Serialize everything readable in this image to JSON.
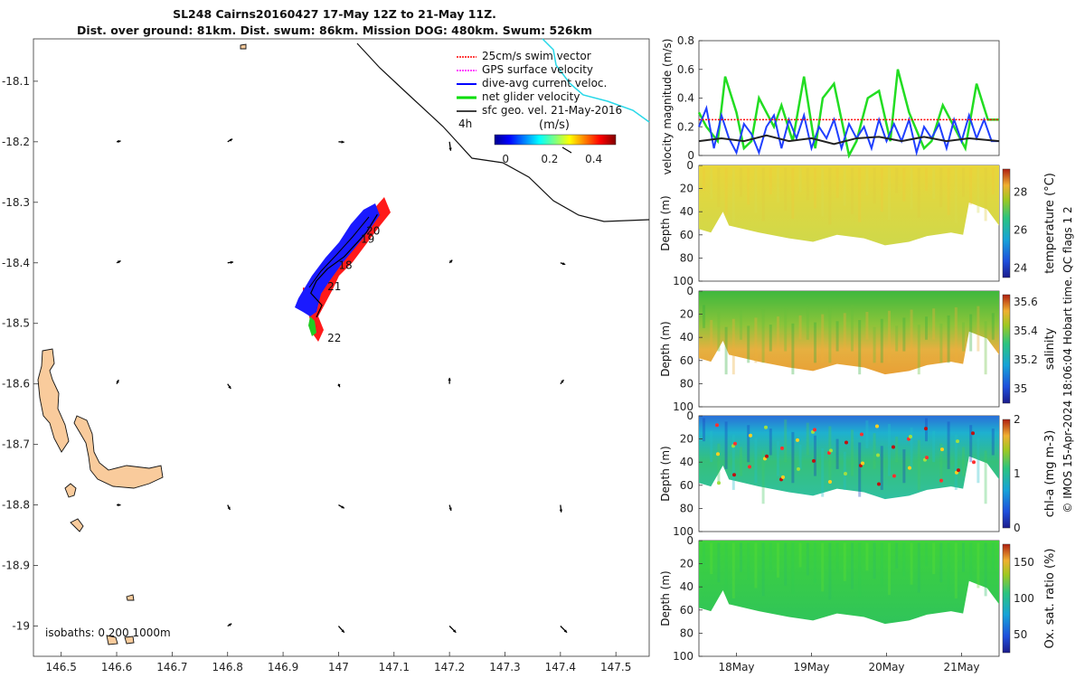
{
  "chart_data": [
    {
      "type": "map",
      "title_line1": "SL248 Cairns20160427 17-May 12Z to 21-May 11Z.",
      "title_line2": "Dist. over ground: 81km. Dist. swum: 86km. Mission DOG: 480km. Swum: 526km",
      "xlim": [
        146.45,
        147.56
      ],
      "ylim": [
        -19.05,
        -18.03
      ],
      "x_ticks": [
        "146.5",
        "146.6",
        "146.7",
        "146.8",
        "146.9",
        "147",
        "147.1",
        "147.2",
        "147.3",
        "147.4",
        "147.5"
      ],
      "x_tick_values": [
        146.5,
        146.6,
        146.7,
        146.8,
        146.9,
        147.0,
        147.1,
        147.2,
        147.3,
        147.4,
        147.5
      ],
      "y_ticks": [
        "-18.1",
        "-18.2",
        "-18.3",
        "-18.4",
        "-18.5",
        "-18.6",
        "-18.7",
        "-18.8",
        "-18.9",
        "-19"
      ],
      "y_tick_values": [
        -18.1,
        -18.2,
        -18.3,
        -18.4,
        -18.5,
        -18.6,
        -18.7,
        -18.8,
        -18.9,
        -19.0
      ],
      "legend": [
        {
          "label": "25cm/s swim vector",
          "color": "#ff0000"
        },
        {
          "label": "GPS surface velocity",
          "color": "#ff00ff"
        },
        {
          "label": "dive-avg current veloc.",
          "color": "#0000ff"
        },
        {
          "label": "net glider velocity",
          "color": "#00dd00"
        },
        {
          "label": "sfc geo. vel. 21-May-2016",
          "color": "#000000"
        }
      ],
      "vector_scale_label": "4h",
      "colorbar": {
        "title": "(m/s)",
        "ticks": [
          "0",
          "0.2",
          "0.4"
        ],
        "tick_values": [
          0,
          0.2,
          0.4
        ],
        "range": [
          -0.05,
          0.5
        ]
      },
      "day_labels": [
        {
          "text": "19",
          "lon": 147.04,
          "lat": -18.367
        },
        {
          "text": "20",
          "lon": 147.05,
          "lat": -18.353
        },
        {
          "text": "18",
          "lon": 147.0,
          "lat": -18.41
        },
        {
          "text": "21",
          "lon": 146.98,
          "lat": -18.445
        },
        {
          "text": "22",
          "lon": 146.98,
          "lat": -18.53
        }
      ],
      "isobath_label": "isobaths: 0   200  1000m",
      "geo_vectors": [
        {
          "lon": 146.6,
          "lat": -18.2,
          "u": 0.5,
          "v": 0.1
        },
        {
          "lon": 146.8,
          "lat": -18.2,
          "u": 0.6,
          "v": 0.35
        },
        {
          "lon": 147.0,
          "lat": -18.2,
          "u": 0.7,
          "v": -0.05
        },
        {
          "lon": 147.2,
          "lat": -18.2,
          "u": 0.15,
          "v": -1.1
        },
        {
          "lon": 146.6,
          "lat": -18.4,
          "u": 0.5,
          "v": 0.25
        },
        {
          "lon": 146.8,
          "lat": -18.4,
          "u": 0.7,
          "v": 0.1
        },
        {
          "lon": 147.2,
          "lat": -18.4,
          "u": 0.35,
          "v": 0.35
        },
        {
          "lon": 147.4,
          "lat": -18.4,
          "u": 0.6,
          "v": -0.2
        },
        {
          "lon": 146.6,
          "lat": -18.6,
          "u": 0.25,
          "v": 0.5
        },
        {
          "lon": 146.8,
          "lat": -18.6,
          "u": 0.4,
          "v": -0.6
        },
        {
          "lon": 147.0,
          "lat": -18.6,
          "u": 0.15,
          "v": -0.4
        },
        {
          "lon": 147.2,
          "lat": -18.6,
          "u": 0.0,
          "v": 0.75
        },
        {
          "lon": 147.4,
          "lat": -18.6,
          "u": 0.4,
          "v": 0.5
        },
        {
          "lon": 146.6,
          "lat": -18.8,
          "u": 0.5,
          "v": 0.0
        },
        {
          "lon": 146.8,
          "lat": -18.8,
          "u": 0.3,
          "v": -0.6
        },
        {
          "lon": 147.0,
          "lat": -18.8,
          "u": 0.7,
          "v": -0.4
        },
        {
          "lon": 147.2,
          "lat": -18.8,
          "u": 0.2,
          "v": -0.7
        },
        {
          "lon": 147.4,
          "lat": -18.8,
          "u": 0.1,
          "v": -0.9
        },
        {
          "lon": 146.8,
          "lat": -19.0,
          "u": 0.5,
          "v": 0.3
        },
        {
          "lon": 147.0,
          "lat": -19.0,
          "u": 0.7,
          "v": -0.8
        },
        {
          "lon": 147.2,
          "lat": -19.0,
          "u": 0.8,
          "v": -0.8
        },
        {
          "lon": 147.4,
          "lat": -19.0,
          "u": 0.8,
          "v": -0.8
        }
      ],
      "glider_track": [
        {
          "lon": 146.96,
          "lat": -18.49
        },
        {
          "lon": 146.97,
          "lat": -18.47
        },
        {
          "lon": 146.95,
          "lat": -18.45
        },
        {
          "lon": 146.96,
          "lat": -18.43
        },
        {
          "lon": 146.98,
          "lat": -18.41
        },
        {
          "lon": 147.01,
          "lat": -18.39
        },
        {
          "lon": 147.03,
          "lat": -18.37
        },
        {
          "lon": 147.05,
          "lat": -18.35
        },
        {
          "lon": 147.07,
          "lat": -18.32
        }
      ]
    },
    {
      "type": "line",
      "ylabel": "velocity magnitude (m/s)",
      "ylim": [
        0,
        0.8
      ],
      "y_ticks": [
        "0",
        "0.2",
        "0.4",
        "0.6",
        "0.8"
      ],
      "y_tick_values": [
        0,
        0.2,
        0.4,
        0.6,
        0.8
      ],
      "x_range_days": [
        17.5,
        21.5
      ],
      "series": [
        {
          "name": "net glider velocity",
          "color": "#22dd22",
          "t": [
            17.5,
            17.6,
            17.75,
            17.85,
            18.0,
            18.1,
            18.2,
            18.3,
            18.5,
            18.6,
            18.75,
            18.9,
            19.05,
            19.15,
            19.3,
            19.5,
            19.6,
            19.75,
            19.9,
            20.05,
            20.15,
            20.3,
            20.5,
            20.6,
            20.75,
            20.9,
            21.05,
            21.2,
            21.35,
            21.5
          ],
          "v": [
            0.3,
            0.2,
            0.1,
            0.55,
            0.3,
            0.05,
            0.1,
            0.4,
            0.2,
            0.35,
            0.1,
            0.55,
            0.05,
            0.4,
            0.5,
            0.0,
            0.1,
            0.4,
            0.45,
            0.1,
            0.6,
            0.3,
            0.05,
            0.1,
            0.35,
            0.2,
            0.05,
            0.5,
            0.25,
            0.25
          ]
        },
        {
          "name": "dive-avg current veloc.",
          "color": "#1f3fff",
          "t": [
            17.5,
            17.6,
            17.7,
            17.8,
            17.9,
            18.0,
            18.1,
            18.2,
            18.3,
            18.4,
            18.5,
            18.6,
            18.7,
            18.8,
            18.9,
            19.0,
            19.1,
            19.2,
            19.3,
            19.4,
            19.5,
            19.6,
            19.7,
            19.8,
            19.9,
            20.0,
            20.1,
            20.2,
            20.3,
            20.4,
            20.5,
            20.6,
            20.7,
            20.8,
            20.9,
            21.0,
            21.1,
            21.2,
            21.3,
            21.4,
            21.5
          ],
          "v": [
            0.2,
            0.33,
            0.05,
            0.28,
            0.12,
            0.02,
            0.22,
            0.15,
            0.02,
            0.2,
            0.28,
            0.05,
            0.25,
            0.12,
            0.28,
            0.05,
            0.2,
            0.12,
            0.25,
            0.05,
            0.22,
            0.12,
            0.2,
            0.05,
            0.25,
            0.1,
            0.22,
            0.1,
            0.25,
            0.02,
            0.2,
            0.12,
            0.22,
            0.05,
            0.25,
            0.1,
            0.28,
            0.12,
            0.25,
            0.1,
            0.1
          ]
        },
        {
          "name": "25cm/s swim vector",
          "color": "#ff0000",
          "t": [
            17.5,
            21.5
          ],
          "v": [
            0.25,
            0.25
          ]
        },
        {
          "name": "sfc geo. vel. 21-May-2016",
          "color": "#222222",
          "t": [
            17.5,
            17.8,
            18.1,
            18.4,
            18.7,
            19.0,
            19.3,
            19.6,
            19.9,
            20.2,
            20.5,
            20.8,
            21.1,
            21.5
          ],
          "v": [
            0.1,
            0.12,
            0.1,
            0.14,
            0.1,
            0.12,
            0.08,
            0.12,
            0.13,
            0.1,
            0.13,
            0.1,
            0.12,
            0.1
          ]
        }
      ]
    },
    {
      "type": "heatmap",
      "ylabel": "Depth (m)",
      "cbar_label": "temperature (°C)",
      "cbar_ticks": [
        "24",
        "26",
        "28"
      ],
      "cbar_tick_values": [
        24,
        26,
        28
      ],
      "clim": [
        23.5,
        29.2
      ],
      "y_ticks": [
        "0",
        "20",
        "40",
        "60",
        "80",
        "100"
      ],
      "y_tick_values": [
        0,
        20,
        40,
        60,
        80,
        100
      ],
      "description_value_surface": 27.8,
      "description_value_bottom": 27.0
    },
    {
      "type": "heatmap",
      "ylabel": "Depth (m)",
      "cbar_label": "salinity",
      "cbar_ticks": [
        "35",
        "35.2",
        "35.4",
        "35.6"
      ],
      "cbar_tick_values": [
        35.0,
        35.2,
        35.4,
        35.6
      ],
      "clim": [
        34.9,
        35.65
      ],
      "y_ticks": [
        "0",
        "20",
        "40",
        "60",
        "80",
        "100"
      ],
      "y_tick_values": [
        0,
        20,
        40,
        60,
        80,
        100
      ]
    },
    {
      "type": "heatmap",
      "ylabel": "Depth (m)",
      "cbar_label": "chl-a (mg m-3)",
      "cbar_ticks": [
        "0",
        "1",
        "2"
      ],
      "cbar_tick_values": [
        0,
        1,
        2
      ],
      "clim": [
        0,
        2
      ],
      "y_ticks": [
        "0",
        "20",
        "40",
        "60",
        "80",
        "100"
      ],
      "y_tick_values": [
        0,
        20,
        40,
        60,
        80,
        100
      ]
    },
    {
      "type": "heatmap",
      "ylabel": "Depth (m)",
      "cbar_label": "Ox. sat. ratio (%)",
      "cbar_ticks": [
        "50",
        "100",
        "150"
      ],
      "cbar_tick_values": [
        50,
        100,
        150
      ],
      "clim": [
        25,
        175
      ],
      "y_ticks": [
        "0",
        "20",
        "40",
        "60",
        "80",
        "100"
      ],
      "y_tick_values": [
        0,
        20,
        40,
        60,
        80,
        100
      ],
      "x_ticks": [
        "18May",
        "19May",
        "20May",
        "21May"
      ],
      "x_tick_values": [
        18.0,
        19.0,
        20.0,
        21.0
      ]
    }
  ],
  "footer_text": "© IMOS 15-Apr-2024 18:06:04 Hobart time. QC flags 1  2"
}
